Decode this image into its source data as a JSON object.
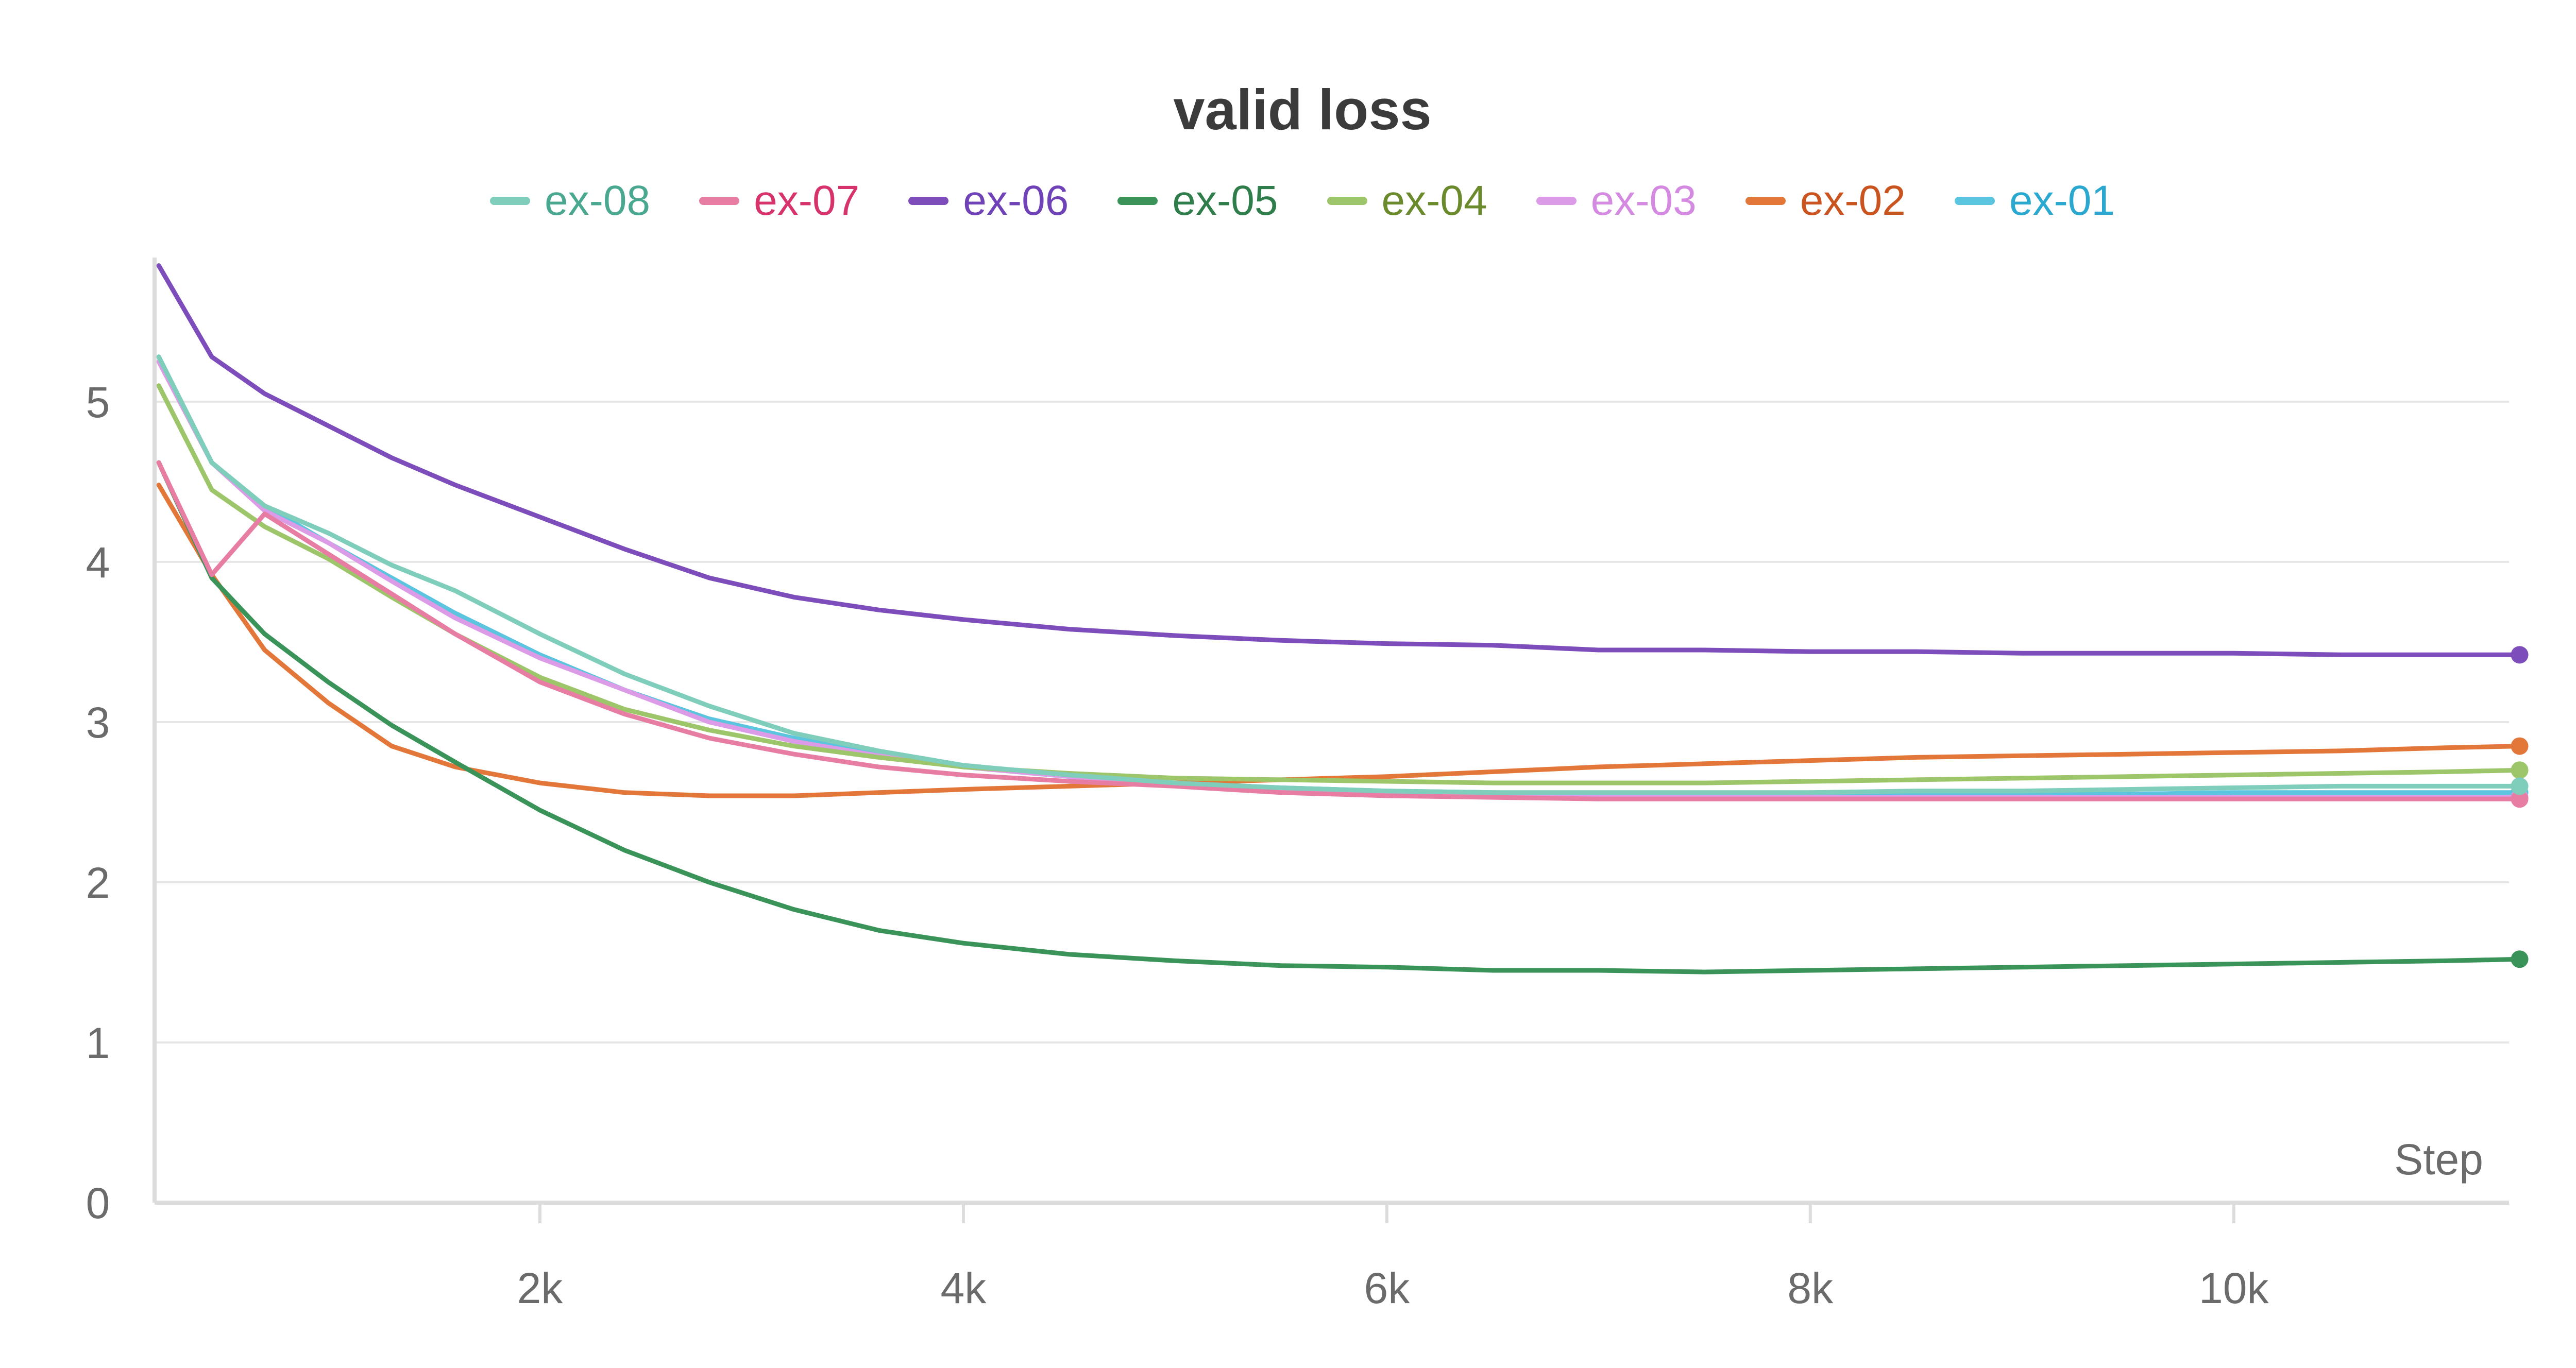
{
  "chart_data": {
    "type": "line",
    "title": "valid loss",
    "xlabel": "Step",
    "ylabel": "",
    "xlim": [
      180,
      11300
    ],
    "ylim": [
      0,
      5.9
    ],
    "grid": true,
    "legend_position": "top-center",
    "x_ticks": [
      2000,
      4000,
      6000,
      8000,
      10000
    ],
    "x_tick_labels": [
      "2k",
      "4k",
      "6k",
      "8k",
      "10k"
    ],
    "y_ticks": [
      0,
      1,
      2,
      3,
      4,
      5
    ],
    "y_tick_labels": [
      "0",
      "1",
      "2",
      "3",
      "4",
      "5"
    ],
    "x": [
      200,
      450,
      700,
      1000,
      1300,
      1600,
      2000,
      2400,
      2800,
      3200,
      3600,
      4000,
      4500,
      5000,
      5500,
      6000,
      6500,
      7000,
      7500,
      8000,
      8500,
      9000,
      9500,
      10000,
      10500,
      11000,
      11350
    ],
    "series": [
      {
        "name": "ex-08",
        "color": "#7fcdbb",
        "text_color": "#4aa891",
        "values": [
          5.28,
          4.62,
          4.35,
          4.18,
          3.98,
          3.82,
          3.55,
          3.3,
          3.1,
          2.93,
          2.82,
          2.73,
          2.67,
          2.62,
          2.59,
          2.57,
          2.56,
          2.56,
          2.56,
          2.56,
          2.57,
          2.57,
          2.58,
          2.59,
          2.6,
          2.6,
          2.6
        ]
      },
      {
        "name": "ex-07",
        "color": "#e87da3",
        "text_color": "#d6336c",
        "values": [
          4.62,
          3.92,
          4.3,
          4.05,
          3.8,
          3.55,
          3.25,
          3.05,
          2.9,
          2.8,
          2.72,
          2.67,
          2.63,
          2.6,
          2.56,
          2.54,
          2.53,
          2.52,
          2.52,
          2.52,
          2.52,
          2.52,
          2.52,
          2.52,
          2.52,
          2.52,
          2.52
        ]
      },
      {
        "name": "ex-06",
        "color": "#7c4dbb",
        "text_color": "#6f42b8",
        "values": [
          5.85,
          5.28,
          5.05,
          4.85,
          4.65,
          4.48,
          4.28,
          4.08,
          3.9,
          3.78,
          3.7,
          3.64,
          3.58,
          3.54,
          3.51,
          3.49,
          3.48,
          3.45,
          3.45,
          3.44,
          3.44,
          3.43,
          3.43,
          3.43,
          3.42,
          3.42,
          3.42
        ]
      },
      {
        "name": "ex-05",
        "color": "#3a9459",
        "text_color": "#2e7d4a",
        "values": [
          4.62,
          3.9,
          3.55,
          3.25,
          2.98,
          2.75,
          2.45,
          2.2,
          2.0,
          1.83,
          1.7,
          1.62,
          1.55,
          1.51,
          1.48,
          1.47,
          1.45,
          1.45,
          1.44,
          1.45,
          1.46,
          1.47,
          1.48,
          1.49,
          1.5,
          1.51,
          1.52
        ]
      },
      {
        "name": "ex-04",
        "color": "#9dc56a",
        "text_color": "#6a8a2c",
        "values": [
          5.1,
          4.45,
          4.22,
          4.02,
          3.78,
          3.55,
          3.28,
          3.08,
          2.95,
          2.85,
          2.78,
          2.72,
          2.68,
          2.65,
          2.64,
          2.63,
          2.62,
          2.62,
          2.62,
          2.63,
          2.64,
          2.65,
          2.66,
          2.67,
          2.68,
          2.69,
          2.7
        ]
      },
      {
        "name": "ex-03",
        "color": "#dc9be6",
        "text_color": "#d48ae0",
        "values": [
          5.25,
          4.62,
          4.32,
          4.12,
          3.88,
          3.65,
          3.4,
          3.2,
          3.0,
          2.88,
          2.79,
          2.72,
          2.66,
          2.61,
          2.58,
          2.56,
          2.55,
          2.54,
          2.54,
          2.53,
          2.53,
          2.53,
          2.53,
          2.53,
          2.53,
          2.53,
          2.53
        ]
      },
      {
        "name": "ex-02",
        "color": "#e3773a",
        "text_color": "#c9541f",
        "values": [
          4.48,
          3.92,
          3.45,
          3.12,
          2.85,
          2.72,
          2.62,
          2.56,
          2.54,
          2.54,
          2.56,
          2.58,
          2.6,
          2.62,
          2.64,
          2.66,
          2.69,
          2.72,
          2.74,
          2.76,
          2.78,
          2.79,
          2.8,
          2.81,
          2.82,
          2.84,
          2.85
        ]
      },
      {
        "name": "ex-01",
        "color": "#5bc4de",
        "text_color": "#2aa8cf",
        "values": [
          5.28,
          4.62,
          4.35,
          4.12,
          3.9,
          3.68,
          3.42,
          3.2,
          3.02,
          2.9,
          2.8,
          2.72,
          2.66,
          2.62,
          2.59,
          2.57,
          2.56,
          2.55,
          2.55,
          2.55,
          2.55,
          2.55,
          2.55,
          2.56,
          2.56,
          2.56,
          2.56
        ]
      }
    ]
  }
}
